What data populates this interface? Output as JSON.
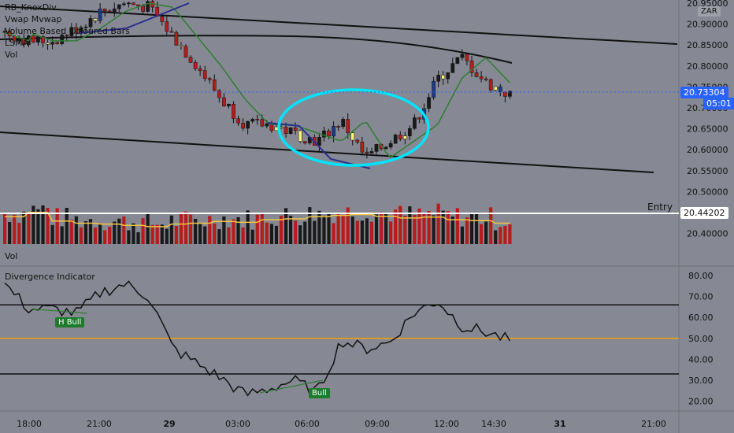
{
  "legends": {
    "main": [
      "RB_KnoxDiv",
      "Vwap Mvwap",
      "Volume Based Coloured Bars",
      "LSMA",
      "Vol"
    ],
    "vol_pane": "Vol",
    "indicator_pane": "Divergence Indicator"
  },
  "price_axis": {
    "labels": [
      "20.95000",
      "20.90000",
      "20.85000",
      "20.80000",
      "20.75000",
      "20.70000",
      "20.65000",
      "20.60000",
      "20.55000",
      "20.50000",
      "20.45000",
      "20.40000"
    ],
    "currency": "ZAR",
    "current_price": "20.73304",
    "countdown": "05:01",
    "entry_price": "20.44202"
  },
  "indicator_axis": {
    "labels": [
      "80.00",
      "70.00",
      "60.00",
      "50.00",
      "40.00",
      "30.00",
      "20.00"
    ]
  },
  "time_axis": {
    "labels": [
      "18:00",
      "21:00",
      "29",
      "03:00",
      "06:00",
      "09:00",
      "12:00",
      "14:30",
      "31",
      "21:00"
    ]
  },
  "annotations": {
    "entry_label": "Entry",
    "h_bull_tag": "H Bull",
    "bull_tag": "Bull"
  },
  "colors": {
    "background": "#868993",
    "bull_candle": "#1a1a1a",
    "bear_candle": "#b71c1c",
    "neutral_candle": "#fff176",
    "blue_candle": "#1e3a8a",
    "lsma": "#2e7d32",
    "divergence_line": "#2a2f8f",
    "circle": "#00e5ff",
    "vol_ma": "#f5c542",
    "mid_line": "#f59e0b",
    "tag_green": "#1e7a2c",
    "current_price": "#2962ff"
  },
  "chart_data": {
    "type": "line",
    "price_series": {
      "name": "Price",
      "x": [
        "18:00",
        "19:00",
        "20:00",
        "21:00",
        "22:00",
        "23:00",
        "29",
        "01:00",
        "02:00",
        "03:00",
        "04:00",
        "05:00",
        "06:00",
        "07:00",
        "08:00",
        "09:00",
        "10:00",
        "11:00",
        "12:00",
        "13:00",
        "14:00",
        "14:30"
      ],
      "close": [
        20.88,
        20.86,
        20.86,
        20.89,
        20.93,
        20.95,
        20.94,
        20.87,
        20.8,
        20.72,
        20.66,
        20.66,
        20.64,
        20.62,
        20.67,
        20.58,
        20.62,
        20.66,
        20.77,
        20.82,
        20.76,
        20.73
      ]
    },
    "divergence_series": {
      "name": "Divergence Indicator",
      "x": [
        "18:00",
        "19:00",
        "20:00",
        "21:00",
        "22:00",
        "23:00",
        "29",
        "01:00",
        "02:00",
        "03:00",
        "04:00",
        "05:00",
        "06:00",
        "07:00",
        "08:00",
        "09:00",
        "10:00",
        "11:00",
        "12:00",
        "13:00",
        "14:00",
        "14:30"
      ],
      "values": [
        76,
        64,
        64,
        62,
        72,
        76,
        70,
        45,
        38,
        31,
        23,
        26,
        30,
        24,
        49,
        45,
        48,
        62,
        68,
        56,
        53,
        49
      ],
      "levels": [
        66,
        50,
        33
      ]
    },
    "volume_series": {
      "name": "Vol",
      "values": [
        45,
        55,
        35,
        30,
        28,
        25,
        22,
        28,
        30,
        34,
        32,
        38,
        40,
        45,
        48,
        50,
        46,
        42,
        44,
        38,
        36,
        30
      ]
    }
  }
}
